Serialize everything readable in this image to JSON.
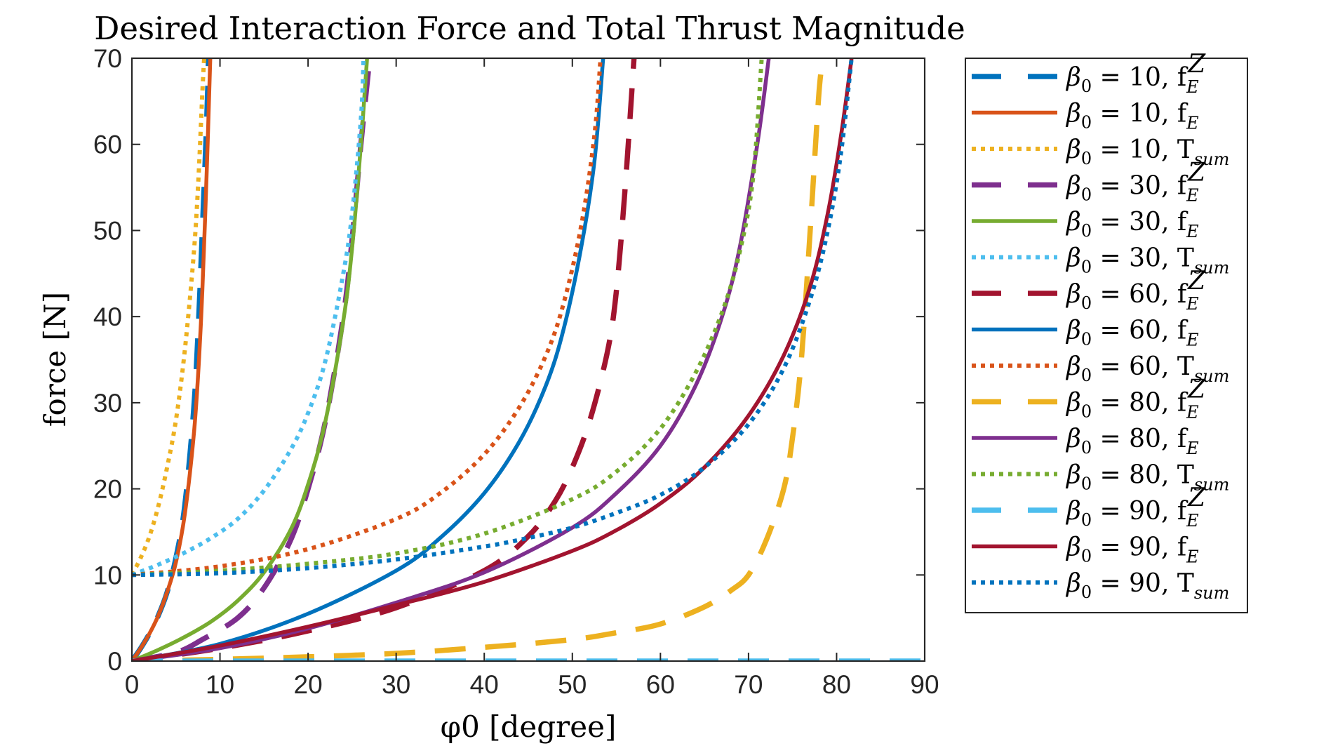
{
  "chart_data": {
    "type": "line",
    "title": "Desired Interaction Force and Total Thrust Magnitude",
    "xlabel": "φ0 [degree]",
    "ylabel": "force [N]",
    "xlim": [
      0,
      90
    ],
    "ylim": [
      0,
      70
    ],
    "xticks": [
      "0",
      "10",
      "20",
      "30",
      "40",
      "50",
      "60",
      "70",
      "80",
      "90"
    ],
    "yticks": [
      "0",
      "10",
      "20",
      "30",
      "40",
      "50",
      "60",
      "70"
    ],
    "grid": false,
    "legend_position": "outside-right",
    "series": [
      {
        "name": "β0 = 10, fE^Z",
        "legend": {
          "base": "β",
          "sub0": "0",
          "eq": " = 10, f",
          "sub": "E",
          "sup": "Z"
        },
        "color": "#0072BD",
        "style": "dashed",
        "x": [
          0,
          1,
          2,
          3,
          4,
          5,
          6,
          7,
          7.5,
          8,
          8.5,
          8.7
        ],
        "y": [
          0,
          1.5,
          3.2,
          5.3,
          8,
          12,
          18,
          29,
          38,
          50,
          63,
          70
        ]
      },
      {
        "name": "β0 = 10, fE",
        "legend": {
          "base": "β",
          "sub0": "0",
          "eq": " = 10, f",
          "sub": "E",
          "sup": ""
        },
        "color": "#D95319",
        "style": "solid",
        "x": [
          0,
          1,
          2,
          3,
          4,
          5,
          6,
          7,
          7.5,
          8,
          8.5,
          8.9
        ],
        "y": [
          0,
          1.5,
          3.2,
          5.3,
          8,
          11.5,
          17,
          26,
          33,
          43,
          57,
          70
        ]
      },
      {
        "name": "β0 = 10, Tsum",
        "legend": {
          "base": "β",
          "sub0": "0",
          "eq": " = 10, T",
          "sub": "sum",
          "sup": ""
        },
        "color": "#EDB120",
        "style": "dotted",
        "x": [
          0,
          1,
          2,
          3,
          4,
          5,
          6,
          7,
          7.5,
          8,
          8.2
        ],
        "y": [
          10,
          12,
          14.5,
          18,
          22.5,
          28,
          36,
          47,
          55,
          66,
          70
        ]
      },
      {
        "name": "β0 = 30, fE^Z",
        "legend": {
          "base": "β",
          "sub0": "0",
          "eq": " = 30, f",
          "sub": "E",
          "sup": "Z"
        },
        "color": "#7E2F8E",
        "style": "dashed",
        "x": [
          0,
          5,
          8,
          12,
          15,
          18,
          20,
          22,
          24,
          25,
          26,
          27
        ],
        "y": [
          0,
          1,
          2.5,
          5,
          8.5,
          14,
          20,
          28,
          40,
          49,
          60,
          70
        ]
      },
      {
        "name": "β0 = 30, fE",
        "legend": {
          "base": "β",
          "sub0": "0",
          "eq": " = 30, f",
          "sub": "E",
          "sup": ""
        },
        "color": "#77AC30",
        "style": "solid",
        "x": [
          0,
          3,
          6,
          9,
          12,
          15,
          18,
          20,
          22,
          24,
          25,
          26,
          26.7
        ],
        "y": [
          0,
          1.3,
          2.8,
          4.6,
          7,
          10.3,
          15.2,
          20.5,
          28,
          39.5,
          48,
          60,
          70
        ]
      },
      {
        "name": "β0 = 30, Tsum",
        "legend": {
          "base": "β",
          "sub0": "0",
          "eq": " = 30, T",
          "sub": "sum",
          "sup": ""
        },
        "color": "#4DBEEE",
        "style": "dotted",
        "x": [
          0,
          3,
          6,
          9,
          12,
          15,
          18,
          20,
          22,
          24,
          25,
          26,
          26.3
        ],
        "y": [
          10,
          11.2,
          12.6,
          14.3,
          16.5,
          19.8,
          24.5,
          28.8,
          35,
          45,
          52,
          63,
          70
        ]
      },
      {
        "name": "β0 = 60, fE^Z",
        "legend": {
          "base": "β",
          "sub0": "0",
          "eq": " = 60, f",
          "sub": "E",
          "sup": "Z"
        },
        "color": "#A2142F",
        "style": "dashed",
        "x": [
          0,
          10,
          20,
          30,
          40,
          45,
          48,
          50,
          52,
          54,
          55,
          56,
          57
        ],
        "y": [
          0,
          1.5,
          3.5,
          6.2,
          10.5,
          14.5,
          18.5,
          22.5,
          28,
          36,
          43,
          55,
          70
        ]
      },
      {
        "name": "β0 = 60, fE",
        "legend": {
          "base": "β",
          "sub0": "0",
          "eq": " = 60, f",
          "sub": "E",
          "sup": ""
        },
        "color": "#0072BD",
        "style": "solid",
        "x": [
          0,
          10,
          20,
          30,
          35,
          40,
          44,
          47,
          49,
          51,
          52.5,
          53.5
        ],
        "y": [
          0,
          2,
          5.5,
          10.5,
          14.3,
          19.5,
          25.5,
          32,
          38.5,
          48,
          58,
          70
        ]
      },
      {
        "name": "β0 = 60, Tsum",
        "legend": {
          "base": "β",
          "sub0": "0",
          "eq": " = 60, T",
          "sub": "sum",
          "sup": ""
        },
        "color": "#D95319",
        "style": "dotted",
        "x": [
          0,
          10,
          20,
          30,
          35,
          40,
          44,
          47,
          49,
          51,
          52.5,
          53.2
        ],
        "y": [
          10,
          11,
          13,
          16.5,
          19.5,
          24,
          29.5,
          35.5,
          41.5,
          50.5,
          61,
          70
        ]
      },
      {
        "name": "β0 = 80, fE^Z",
        "legend": {
          "base": "β",
          "sub0": "0",
          "eq": " = 80, f",
          "sub": "E",
          "sup": "Z"
        },
        "color": "#EDB120",
        "style": "dashed",
        "x": [
          0,
          10,
          20,
          30,
          40,
          50,
          55,
          60,
          65,
          68,
          70,
          72,
          74,
          75,
          76,
          77,
          78,
          78.5
        ],
        "y": [
          0,
          0.2,
          0.5,
          0.9,
          1.6,
          2.5,
          3.3,
          4.3,
          6.3,
          8.2,
          10,
          14,
          20,
          26,
          35,
          50,
          66,
          70
        ]
      },
      {
        "name": "β0 = 80, fE",
        "legend": {
          "base": "β",
          "sub0": "0",
          "eq": " = 80, f",
          "sub": "E",
          "sup": ""
        },
        "color": "#7E2F8E",
        "style": "solid",
        "x": [
          0,
          10,
          20,
          30,
          40,
          50,
          55,
          60,
          64,
          67,
          69,
          71,
          72.3
        ],
        "y": [
          0,
          1.5,
          3.8,
          6.8,
          10.3,
          15.5,
          19.5,
          25,
          32,
          40,
          48,
          60,
          70
        ]
      },
      {
        "name": "β0 = 80, Tsum",
        "legend": {
          "base": "β",
          "sub0": "0",
          "eq": " = 80, T",
          "sub": "sum",
          "sup": ""
        },
        "color": "#77AC30",
        "style": "dotted",
        "x": [
          0,
          10,
          20,
          30,
          40,
          50,
          55,
          60,
          64,
          67,
          69,
          70.5,
          71.5
        ],
        "y": [
          10,
          10.5,
          11.3,
          12.5,
          14.8,
          18.8,
          22,
          27,
          33.5,
          40.5,
          47.5,
          56,
          70
        ]
      },
      {
        "name": "β0 = 90, fE^Z",
        "legend": {
          "base": "β",
          "sub0": "0",
          "eq": " = 90, f",
          "sub": "E",
          "sup": "Z"
        },
        "color": "#4DBEEE",
        "style": "dashed",
        "x": [
          0,
          90
        ],
        "y": [
          0,
          0
        ]
      },
      {
        "name": "β0 = 90, fE",
        "legend": {
          "base": "β",
          "sub0": "0",
          "eq": " = 90, f",
          "sub": "E",
          "sup": ""
        },
        "color": "#A2142F",
        "style": "solid",
        "x": [
          0,
          10,
          20,
          30,
          40,
          50,
          55,
          60,
          65,
          70,
          74,
          77,
          79,
          80.5,
          81.7
        ],
        "y": [
          0,
          1.8,
          4,
          6.5,
          9.2,
          12.8,
          15.2,
          18.3,
          22.5,
          28.5,
          35.5,
          43.5,
          52,
          61,
          70
        ]
      },
      {
        "name": "β0 = 90, Tsum",
        "legend": {
          "base": "β",
          "sub0": "0",
          "eq": " = 90, T",
          "sub": "sum",
          "sup": ""
        },
        "color": "#0072BD",
        "style": "dotted",
        "x": [
          0,
          10,
          20,
          30,
          40,
          45,
          50,
          55,
          60,
          65,
          70,
          74,
          77,
          79,
          80.5,
          81.7
        ],
        "y": [
          10,
          10.2,
          10.8,
          11.8,
          13.3,
          14.3,
          15.5,
          17.2,
          19.3,
          22.5,
          27.5,
          34,
          42,
          50,
          59,
          70
        ]
      }
    ]
  }
}
